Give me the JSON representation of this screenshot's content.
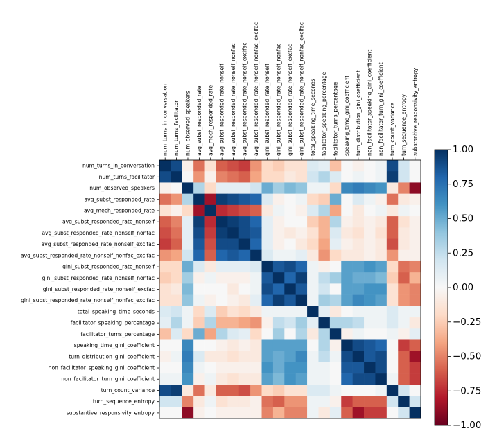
{
  "chart_data": {
    "type": "heatmap",
    "title": "",
    "xlabel": "",
    "ylabel": "",
    "labels": [
      "num_turns_in_conversation",
      "num_turns_facilitator",
      "num_observed_speakers",
      "avg_subst_responded_rate",
      "avg_mech_responded_rate",
      "avg_subst_responded_rate_nonself",
      "avg_subst_responded_rate_nonself_nonfac",
      "avg_subst_responded_rate_nonself_exclfac",
      "avg_subst_responded_rate_nonself_nonfac_exclfac",
      "gini_subst_responded_rate_nonself",
      "gini_subst_responded_rate_nonself_nonfac",
      "gini_subst_responded_rate_nonself_excfac",
      "gini_subst_responded_rate_nonself_nonfac_exclfac",
      "total_speaking_time_seconds",
      "facilitator_speaking_percentage",
      "facilitator_turns_percentage",
      "speaking_time_gini_coefficient",
      "turn_distribution_gini_coefficient",
      "non_facilitator_speaking_gini_coefficient",
      "non_facilitator_turn_gini_coefficient",
      "turn_count_variance",
      "turn_sequence_entropy",
      "substantive_responsivity_entropy"
    ],
    "vmin": -1.0,
    "vmax": 1.0,
    "colormap": "RdBu",
    "colorbar_ticks": [
      "1.00",
      "0.75",
      "0.50",
      "0.25",
      "0.00",
      "−0.25",
      "−0.50",
      "−0.75",
      "−1.00"
    ],
    "colorbar_tick_values": [
      1.0,
      0.75,
      0.5,
      0.25,
      0.0,
      -0.25,
      -0.5,
      -0.75,
      -1.0
    ],
    "matrix": [
      [
        1.0,
        0.9,
        -0.05,
        -0.55,
        -0.15,
        -0.6,
        -0.65,
        -0.7,
        -0.45,
        -0.2,
        -0.25,
        -0.15,
        -0.15,
        0.15,
        0.1,
        -0.3,
        0.0,
        -0.05,
        0.0,
        0.05,
        0.9,
        0.2,
        0.0
      ],
      [
        0.9,
        1.0,
        0.0,
        -0.45,
        -0.05,
        -0.5,
        -0.55,
        -0.6,
        -0.4,
        -0.2,
        -0.2,
        -0.1,
        -0.15,
        0.2,
        0.3,
        0.15,
        0.0,
        0.05,
        0.0,
        0.05,
        0.95,
        0.2,
        0.0
      ],
      [
        -0.05,
        0.0,
        1.0,
        0.3,
        -0.2,
        0.1,
        0.1,
        0.1,
        0.2,
        0.5,
        0.35,
        0.45,
        0.4,
        0.05,
        0.05,
        -0.2,
        0.65,
        0.7,
        0.65,
        0.6,
        -0.1,
        -0.5,
        -0.9
      ],
      [
        -0.55,
        -0.45,
        0.3,
        1.0,
        -0.85,
        0.95,
        0.9,
        0.85,
        0.8,
        0.15,
        -0.05,
        0.0,
        0.05,
        -0.2,
        -0.25,
        0.5,
        0.0,
        0.15,
        0.05,
        -0.05,
        -0.55,
        -0.1,
        -0.05
      ],
      [
        -0.15,
        -0.05,
        -0.2,
        -0.85,
        1.0,
        -0.75,
        -0.7,
        -0.65,
        -0.6,
        -0.1,
        0.05,
        0.0,
        -0.05,
        0.15,
        0.3,
        -0.4,
        0.0,
        -0.1,
        0.0,
        0.05,
        -0.1,
        0.05,
        0.0
      ],
      [
        -0.6,
        -0.5,
        0.1,
        0.95,
        -0.75,
        1.0,
        0.95,
        0.9,
        0.8,
        0.1,
        -0.05,
        0.0,
        0.0,
        -0.25,
        -0.35,
        0.3,
        -0.05,
        -0.1,
        -0.05,
        -0.1,
        -0.6,
        -0.15,
        -0.05
      ],
      [
        -0.65,
        -0.55,
        0.1,
        0.9,
        -0.7,
        0.95,
        1.0,
        0.9,
        0.85,
        0.1,
        -0.05,
        -0.1,
        -0.05,
        -0.15,
        -0.35,
        0.15,
        -0.1,
        -0.15,
        -0.05,
        -0.15,
        -0.6,
        -0.1,
        -0.05
      ],
      [
        -0.7,
        -0.6,
        0.1,
        0.85,
        -0.65,
        0.9,
        0.9,
        1.0,
        0.8,
        0.1,
        -0.05,
        0.0,
        -0.1,
        -0.2,
        -0.4,
        0.1,
        -0.05,
        -0.1,
        -0.05,
        -0.1,
        -0.65,
        -0.1,
        -0.05
      ],
      [
        -0.45,
        -0.4,
        0.2,
        0.8,
        -0.6,
        0.8,
        0.85,
        0.8,
        1.0,
        0.15,
        0.05,
        0.05,
        0.1,
        -0.1,
        -0.45,
        -0.2,
        -0.1,
        -0.1,
        -0.05,
        -0.1,
        -0.45,
        -0.05,
        -0.05
      ],
      [
        -0.2,
        -0.2,
        0.5,
        0.15,
        -0.1,
        0.1,
        0.1,
        0.1,
        0.15,
        1.0,
        0.85,
        0.9,
        0.8,
        0.05,
        -0.05,
        0.0,
        0.55,
        0.55,
        0.6,
        0.55,
        -0.2,
        -0.55,
        -0.5
      ],
      [
        -0.25,
        -0.2,
        0.35,
        -0.05,
        0.05,
        -0.05,
        -0.05,
        -0.05,
        0.05,
        0.85,
        1.0,
        0.8,
        0.95,
        0.05,
        0.25,
        0.35,
        0.55,
        0.5,
        0.5,
        0.45,
        -0.25,
        -0.6,
        -0.35
      ],
      [
        -0.15,
        -0.1,
        0.45,
        0.0,
        0.0,
        0.0,
        -0.1,
        0.0,
        0.05,
        0.9,
        0.8,
        1.0,
        0.85,
        0.05,
        0.2,
        0.0,
        0.55,
        0.55,
        0.6,
        0.6,
        -0.15,
        -0.45,
        -0.5
      ],
      [
        -0.15,
        -0.15,
        0.4,
        0.05,
        -0.05,
        0.0,
        -0.05,
        -0.1,
        0.1,
        0.8,
        0.95,
        0.85,
        1.0,
        0.05,
        0.35,
        0.3,
        0.55,
        0.65,
        0.6,
        0.55,
        -0.15,
        -0.45,
        -0.5
      ],
      [
        0.15,
        0.2,
        0.05,
        -0.2,
        0.15,
        -0.25,
        -0.15,
        -0.2,
        -0.1,
        0.05,
        0.05,
        0.05,
        0.05,
        1.0,
        0.1,
        -0.1,
        0.0,
        0.05,
        0.05,
        0.05,
        0.15,
        0.05,
        0.05
      ],
      [
        0.1,
        0.3,
        0.05,
        -0.25,
        0.3,
        -0.35,
        -0.35,
        -0.4,
        -0.45,
        -0.05,
        0.25,
        0.2,
        0.35,
        0.1,
        1.0,
        0.3,
        0.3,
        0.25,
        0.05,
        0.05,
        0.15,
        0.05,
        -0.1
      ],
      [
        -0.3,
        0.15,
        -0.2,
        0.5,
        -0.4,
        0.3,
        0.15,
        0.1,
        -0.2,
        0.0,
        0.35,
        0.0,
        0.3,
        -0.1,
        0.3,
        1.0,
        -0.05,
        0.05,
        0.0,
        0.0,
        0.05,
        -0.05,
        0.1
      ],
      [
        0.0,
        0.0,
        0.65,
        0.0,
        0.0,
        -0.05,
        -0.1,
        -0.05,
        -0.1,
        0.55,
        0.55,
        0.55,
        0.55,
        0.0,
        0.3,
        -0.05,
        1.0,
        0.9,
        0.85,
        0.8,
        0.0,
        -0.7,
        -0.6
      ],
      [
        -0.05,
        0.05,
        0.7,
        0.15,
        -0.1,
        -0.1,
        -0.15,
        -0.1,
        -0.1,
        0.55,
        0.5,
        0.55,
        0.65,
        0.05,
        0.25,
        0.05,
        0.9,
        1.0,
        0.85,
        0.9,
        0.0,
        -0.6,
        -0.85
      ],
      [
        0.0,
        0.0,
        0.65,
        0.05,
        0.0,
        -0.05,
        -0.05,
        -0.05,
        -0.05,
        0.6,
        0.5,
        0.6,
        0.6,
        0.05,
        0.05,
        0.0,
        0.85,
        0.85,
        1.0,
        0.9,
        0.0,
        -0.6,
        -0.7
      ],
      [
        0.05,
        0.05,
        0.6,
        -0.05,
        0.05,
        -0.1,
        -0.15,
        -0.1,
        -0.1,
        0.55,
        0.45,
        0.6,
        0.55,
        0.05,
        0.05,
        0.0,
        0.8,
        0.9,
        0.9,
        1.0,
        0.05,
        -0.6,
        -0.7
      ],
      [
        0.9,
        0.95,
        -0.1,
        -0.55,
        -0.1,
        -0.6,
        -0.6,
        -0.65,
        -0.45,
        -0.2,
        -0.25,
        -0.15,
        -0.15,
        0.15,
        0.15,
        0.05,
        0.0,
        0.0,
        0.0,
        0.05,
        1.0,
        0.2,
        0.0
      ],
      [
        0.2,
        0.2,
        -0.5,
        -0.1,
        0.05,
        -0.15,
        -0.1,
        -0.1,
        -0.05,
        -0.55,
        -0.6,
        -0.45,
        -0.45,
        0.05,
        0.05,
        -0.05,
        -0.7,
        -0.6,
        -0.6,
        -0.6,
        0.2,
        1.0,
        0.2
      ],
      [
        0.0,
        0.0,
        -0.9,
        -0.05,
        0.0,
        -0.05,
        -0.05,
        -0.05,
        -0.05,
        -0.5,
        -0.35,
        -0.5,
        -0.5,
        0.05,
        -0.1,
        0.1,
        -0.6,
        -0.85,
        -0.7,
        -0.7,
        0.0,
        0.2,
        1.0
      ]
    ]
  }
}
